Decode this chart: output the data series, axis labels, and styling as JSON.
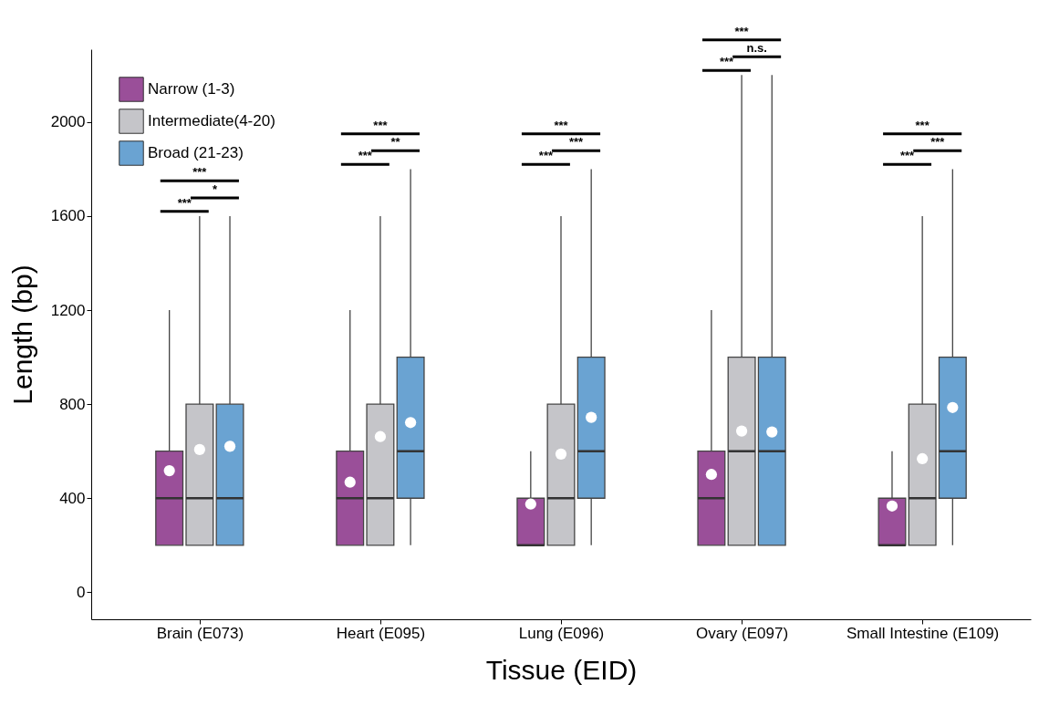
{
  "chart_data": {
    "type": "box",
    "xlabel": "Tissue (EID)",
    "ylabel": "Length (bp)",
    "categories": [
      "Brain (E073)",
      "Heart (E095)",
      "Lung (E096)",
      "Ovary (E097)",
      "Small Intestine (E109)"
    ],
    "ylim": [
      -115,
      2310
    ],
    "yticks": [
      0,
      400,
      800,
      1200,
      1600,
      2000
    ],
    "grid": false,
    "legend": "top left",
    "series": [
      {
        "name": "Narrow (1-3)",
        "color": "#9a4f99",
        "boxes": [
          {
            "low": 200,
            "q1": 200,
            "median": 400,
            "q3": 600,
            "high": 1200,
            "mean": 517
          },
          {
            "low": 200,
            "q1": 200,
            "median": 400,
            "q3": 600,
            "high": 1200,
            "mean": 468
          },
          {
            "low": 200,
            "q1": 200,
            "median": 200,
            "q3": 400,
            "high": 600,
            "mean": 375
          },
          {
            "low": 200,
            "q1": 200,
            "median": 400,
            "q3": 600,
            "high": 1200,
            "mean": 501
          },
          {
            "low": 200,
            "q1": 200,
            "median": 200,
            "q3": 400,
            "high": 600,
            "mean": 367
          }
        ]
      },
      {
        "name": "Intermediate(4-20)",
        "color": "#c5c5c9",
        "boxes": [
          {
            "low": 200,
            "q1": 200,
            "median": 400,
            "q3": 800,
            "high": 1600,
            "mean": 607
          },
          {
            "low": 200,
            "q1": 200,
            "median": 400,
            "q3": 800,
            "high": 1600,
            "mean": 662
          },
          {
            "low": 200,
            "q1": 200,
            "median": 400,
            "q3": 800,
            "high": 1600,
            "mean": 588
          },
          {
            "low": 200,
            "q1": 200,
            "median": 600,
            "q3": 1000,
            "high": 2200,
            "mean": 686
          },
          {
            "low": 200,
            "q1": 200,
            "median": 400,
            "q3": 800,
            "high": 1600,
            "mean": 568
          }
        ]
      },
      {
        "name": "Broad (21-23)",
        "color": "#6aa3d2",
        "boxes": [
          {
            "low": 200,
            "q1": 200,
            "median": 400,
            "q3": 800,
            "high": 1600,
            "mean": 621
          },
          {
            "low": 200,
            "q1": 400,
            "median": 600,
            "q3": 1000,
            "high": 1800,
            "mean": 722
          },
          {
            "low": 200,
            "q1": 400,
            "median": 600,
            "q3": 1000,
            "high": 1800,
            "mean": 744
          },
          {
            "low": 200,
            "q1": 200,
            "median": 600,
            "q3": 1000,
            "high": 2200,
            "mean": 682
          },
          {
            "low": 200,
            "q1": 400,
            "median": 600,
            "q3": 1000,
            "high": 1800,
            "mean": 786
          }
        ]
      }
    ],
    "annotations": [
      "***",
      "***",
      "*",
      "***",
      "***",
      "**",
      "***",
      "***",
      "***",
      "***",
      "***",
      "n.s.",
      "***",
      "***",
      "***"
    ]
  }
}
